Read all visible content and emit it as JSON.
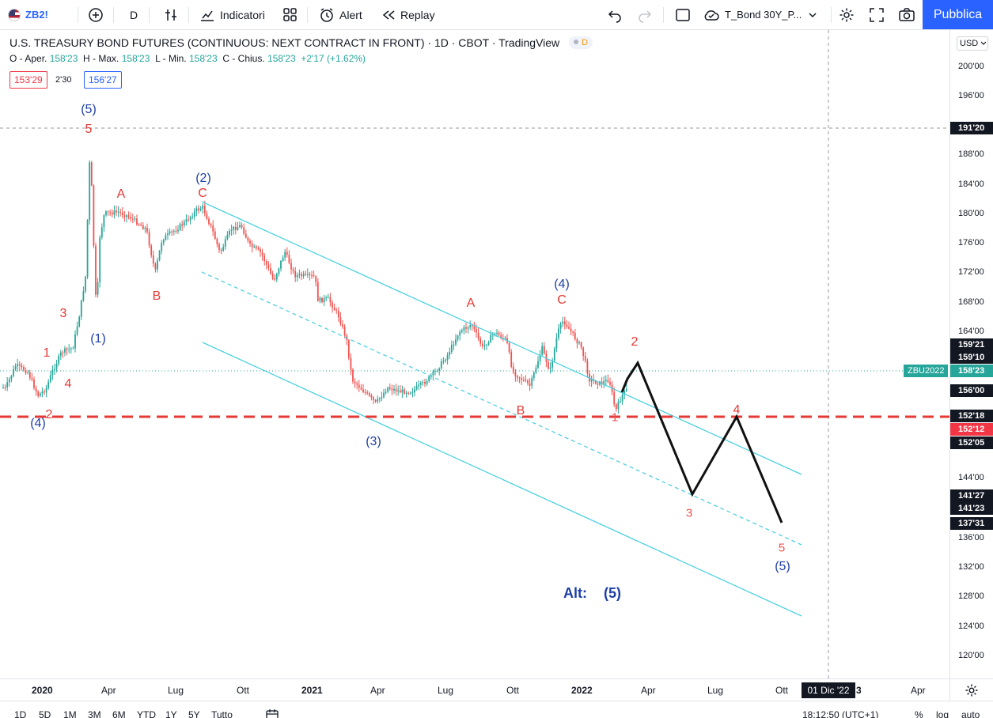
{
  "toolbar": {
    "symbol": "ZB2!",
    "interval": "D",
    "indicators": "Indicatori",
    "alert": "Alert",
    "replay": "Replay",
    "layout_name": "T_Bond 30Y_P...",
    "publish": "Pubblica"
  },
  "legend": {
    "title": "U.S. TREASURY BOND FUTURES (CONTINUOUS: NEXT CONTRACT IN FRONT) · 1D · CBOT · TradingView",
    "badge": "D",
    "o_label": "O - Aper.",
    "o_value": "158'23",
    "h_label": "H - Max.",
    "h_value": "158'23",
    "l_label": "L - Min.",
    "l_value": "158'23",
    "c_label": "C - Chius.",
    "c_value": "158'23",
    "change": "+2'17 (+1.62%)",
    "sell": "153'29",
    "spread": "2'30",
    "buy": "156'27"
  },
  "price_axis": {
    "currency": "USD",
    "ticks": [
      "200'00",
      "196'00",
      "188'00",
      "184'00",
      "180'00",
      "176'00",
      "172'00",
      "168'00",
      "164'00",
      "144'00",
      "136'00",
      "132'00",
      "128'00",
      "124'00",
      "120'00"
    ],
    "labels": [
      {
        "text": "191'20",
        "style": "dark"
      },
      {
        "text": "159'21",
        "style": "dark"
      },
      {
        "text": "159'10",
        "style": "dark"
      },
      {
        "text": "158'23",
        "style": "green"
      },
      {
        "text": "156'00",
        "style": "dark"
      },
      {
        "text": "152'18",
        "style": "dark"
      },
      {
        "text": "152'12",
        "style": "red"
      },
      {
        "text": "152'05",
        "style": "dark"
      },
      {
        "text": "141'27",
        "style": "dark"
      },
      {
        "text": "141'23",
        "style": "dark"
      },
      {
        "text": "137'31",
        "style": "dark"
      }
    ],
    "symbol_tag": "ZBU2022"
  },
  "time_axis": {
    "ticks": [
      {
        "text": "2020",
        "bold": true
      },
      {
        "text": "Apr",
        "bold": false
      },
      {
        "text": "Lug",
        "bold": false
      },
      {
        "text": "Ott",
        "bold": false
      },
      {
        "text": "2021",
        "bold": true
      },
      {
        "text": "Apr",
        "bold": false
      },
      {
        "text": "Lug",
        "bold": false
      },
      {
        "text": "Ott",
        "bold": false
      },
      {
        "text": "2022",
        "bold": true
      },
      {
        "text": "Apr",
        "bold": false
      },
      {
        "text": "Lug",
        "bold": false
      },
      {
        "text": "Ott",
        "bold": false
      },
      {
        "text": "3",
        "bold": false
      },
      {
        "text": "Apr",
        "bold": false
      }
    ],
    "crosshair_date": "01 Dic '22"
  },
  "bottom_bar": {
    "ranges": [
      "1D",
      "5D",
      "1M",
      "3M",
      "6M",
      "YTD",
      "1Y",
      "5Y",
      "Tutto"
    ],
    "clock": "18:12:50 (UTC+1)",
    "percent": "%",
    "log": "log",
    "auto": "auto"
  },
  "waves": {
    "blue": [
      "(5)",
      "(2)",
      "(1)",
      "(4)",
      "(3)",
      "(4)",
      "(5)"
    ],
    "red_major": [
      "5",
      "A",
      "C",
      "B",
      "3",
      "1",
      "4",
      "2",
      "A",
      "C",
      "B",
      "2",
      "4"
    ],
    "pink_projection": [
      "1",
      "3",
      "5"
    ],
    "alt": "Alt:",
    "alt_wave": "(5)"
  },
  "colors": {
    "up": "#26a69a",
    "down": "#ef5350",
    "channel": "#4dd0e1",
    "support": "#e53935",
    "projection": "#111111",
    "wave_blue": "#1e3fa8",
    "wave_red": "#e53935"
  }
}
